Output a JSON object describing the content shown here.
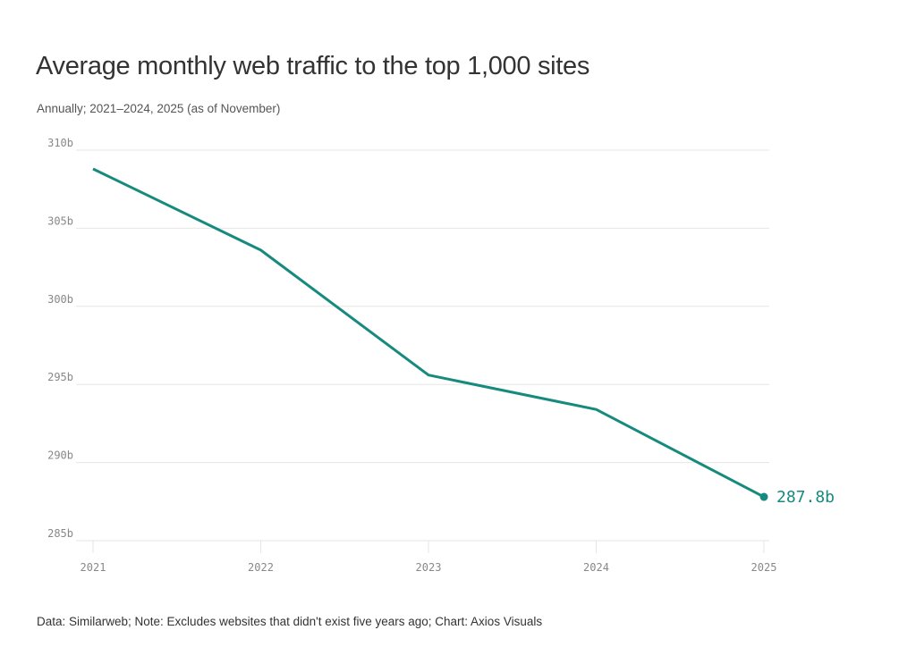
{
  "title": "Average monthly web traffic to the top 1,000 sites",
  "subtitle": "Annually; 2021–2024, 2025 (as of November)",
  "footer": "Data: Similarweb; Note: Excludes websites that didn't exist five years ago; Chart: Axios Visuals",
  "colors": {
    "line": "#178a7e",
    "grid": "#e6e6e6",
    "tick_text": "#888888"
  },
  "chart_data": {
    "type": "line",
    "title": "Average monthly web traffic to the top 1,000 sites",
    "subtitle": "Annually; 2021–2024, 2025 (as of November)",
    "x": [
      "2021",
      "2022",
      "2023",
      "2024",
      "2025"
    ],
    "values": [
      308.8,
      303.6,
      295.6,
      293.4,
      287.8
    ],
    "unit": "b",
    "ylim": [
      285,
      310
    ],
    "yticks": [
      "285b",
      "290b",
      "295b",
      "300b",
      "305b",
      "310b"
    ],
    "ytick_values": [
      285,
      290,
      295,
      300,
      305,
      310
    ],
    "grid": true,
    "end_label": "287.8b"
  }
}
